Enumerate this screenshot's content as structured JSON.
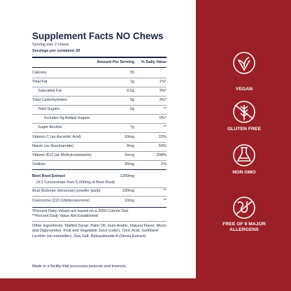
{
  "title": "Supplement Facts NO Chews",
  "serving_size": "Serving size 2 chews",
  "servings": "Servings per container 30",
  "header": [
    "Amount Per Serving",
    "% Daily Value"
  ],
  "rows": [
    [
      "Calories",
      "35"
    ],
    [
      "Total Fat",
      "1g",
      "1%*"
    ],
    [
      "Saturated Fat",
      "0.5g",
      "3%*"
    ],
    [
      "Total Carbohydrates",
      "9g",
      "3%*"
    ],
    [
      "Total Sugars",
      "0g",
      "**"
    ],
    [
      "Includes 0g Added Sugars",
      "0%*"
    ],
    [
      "Suger Alcohol",
      "7g",
      "**"
    ],
    [
      "Vitamin C (as Ascorbic Acid)",
      "20mg",
      "22%"
    ],
    [
      "Niacin (as Niacinamide)",
      "8mg",
      "50%"
    ],
    [
      "Vitamin B12 (as Methylcobalamin)",
      "5mcg",
      "208%"
    ],
    [
      "Sodium",
      "30mg",
      "1%"
    ],
    [
      "Beet Root Extract",
      "1250mg"
    ],
    [
      "(4:1 Concentrate from 5,000mg of Beet Root)"
    ],
    [
      "Acai (Euterpe oleraceae) powder (pulp)",
      "100mg",
      "**"
    ],
    [
      "Coenzyme Q10 (Ubidecarenone)",
      "10mg",
      "**"
    ]
  ],
  "footnotes": [
    "*Percent Daily Values are based on a 2000 Calorie Diet",
    "**Percent Daily Value Not Established"
  ],
  "other_ingredients": "Other Ingredients: Maltitol Syrup, Palm Oil, Gum Arabic, Natural Flavor, Mono and Diglycerides, Fruit and Vegetable Juice (color), Citric Acid, Sunflower Lecithin (an emulsifier), Sea Salt, Rebaudioside A (Stevia Extract).",
  "facility": "Made in a facility that processes peanuts and treenuts.",
  "badges": [
    "VEGAN",
    "GLUTEN FREE",
    "NON GMO",
    "FREE OF 9 MAJOR ALLERGENS"
  ]
}
